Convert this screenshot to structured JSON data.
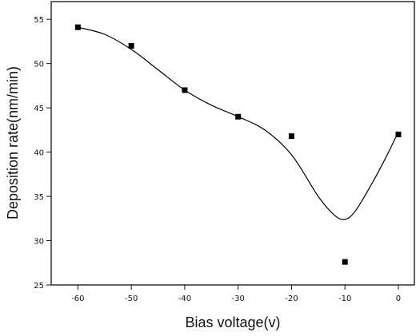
{
  "chart_data": {
    "type": "scatter",
    "title": "",
    "xlabel": "Bias voltage(v)",
    "ylabel": "Deposition rate(nm/min)",
    "xlim": [
      -65,
      3
    ],
    "ylim": [
      25,
      57
    ],
    "xticks": [
      -60,
      -50,
      -40,
      -30,
      -20,
      -10,
      0
    ],
    "yticks": [
      25,
      30,
      35,
      40,
      45,
      50,
      55
    ],
    "xtick_labels": [
      "-60",
      "-50",
      "-40",
      "-30",
      "-20",
      "-10",
      "0"
    ],
    "ytick_labels": [
      "25",
      "30",
      "35",
      "40",
      "45",
      "50",
      "55"
    ],
    "grid": false,
    "series": [
      {
        "kind": "points",
        "marker": "square",
        "color": "#000000",
        "x": [
          -60,
          -50,
          -40,
          -30,
          -20,
          -10,
          0
        ],
        "y": [
          54.1,
          52.0,
          47.0,
          44.0,
          41.8,
          27.6,
          42.0
        ]
      },
      {
        "kind": "smooth-fit-curve",
        "color": "#000000",
        "x": [
          -60,
          -55,
          -50,
          -45,
          -40,
          -35,
          -30,
          -25,
          -20,
          -15,
          -12,
          -10,
          -8,
          -5,
          -2,
          0
        ],
        "y": [
          54.1,
          53.3,
          51.6,
          49.3,
          47.0,
          45.3,
          44.0,
          42.5,
          39.7,
          35.0,
          32.9,
          32.4,
          33.4,
          36.4,
          39.8,
          42.3
        ]
      }
    ]
  }
}
